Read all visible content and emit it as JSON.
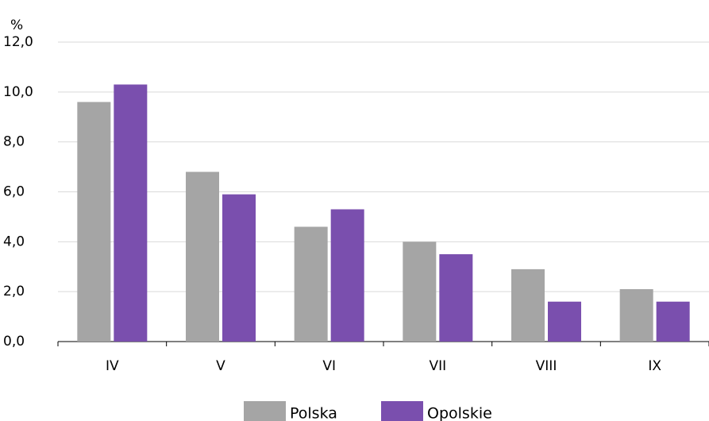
{
  "chart_data": {
    "type": "bar",
    "y_label": "%",
    "categories": [
      "IV",
      "V",
      "VI",
      "VII",
      "VIII",
      "IX"
    ],
    "series": [
      {
        "name": "Polska",
        "color": "#a5a5a5",
        "values": [
          9.6,
          6.8,
          4.6,
          4.0,
          2.9,
          2.1
        ]
      },
      {
        "name": "Opolskie",
        "color": "#7a4fae",
        "values": [
          10.3,
          5.9,
          5.3,
          3.5,
          1.6,
          1.6
        ]
      }
    ],
    "ylim": [
      0,
      12
    ],
    "yticks": [
      {
        "value": 0,
        "label": "0,0"
      },
      {
        "value": 2,
        "label": "2,0"
      },
      {
        "value": 4,
        "label": "4,0"
      },
      {
        "value": 6,
        "label": "6,0"
      },
      {
        "value": 8,
        "label": "8,0"
      },
      {
        "value": 10,
        "label": "10,0"
      },
      {
        "value": 12,
        "label": "12,0"
      }
    ],
    "grid": true,
    "legend": "bottom"
  }
}
